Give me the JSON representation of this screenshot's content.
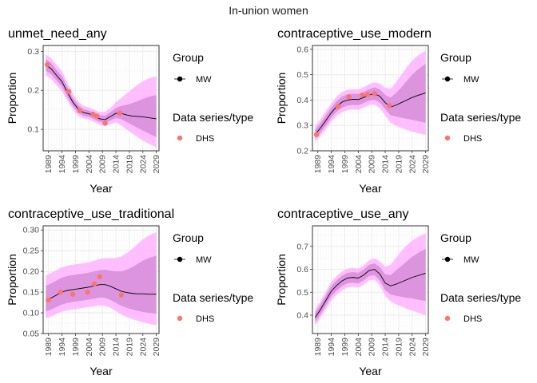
{
  "figure_title": "In-union women",
  "colors": {
    "outer_band": "#FFB3FF",
    "inner_band": "#D98FDB",
    "line": "#000000",
    "points": "#F8766D",
    "grid_major": "#EBEBEB",
    "grid_minor": "#F5F5F5",
    "axis_text": "#4D4D4D"
  },
  "chart_data": [
    {
      "type": "line",
      "title": "unmet_need_any",
      "xlabel": "Year",
      "ylabel": "Proportion",
      "xlim": [
        1987,
        2030
      ],
      "ylim": [
        0.045,
        0.315
      ],
      "x_ticks": [
        "1989",
        "1994",
        "1999",
        "2004",
        "2009",
        "2014",
        "2019",
        "2024",
        "2029"
      ],
      "y_ticks": [
        0.1,
        0.2,
        0.3
      ],
      "y_tick_labels": [
        "0.1",
        "0.2",
        "0.3"
      ],
      "legend": {
        "group_title": "Group",
        "group_label": "MW",
        "series_title": "Data series/type",
        "series_label": "DHS",
        "position": "right"
      },
      "series": [
        {
          "name": "MW",
          "kind": "median",
          "x": [
            1988,
            1990,
            1992,
            1994,
            1996,
            1998,
            2000,
            2002,
            2004,
            2006,
            2008,
            2010,
            2012,
            2014,
            2016,
            2018,
            2020,
            2022,
            2024,
            2026,
            2029
          ],
          "y": [
            0.265,
            0.255,
            0.238,
            0.222,
            0.195,
            0.17,
            0.152,
            0.143,
            0.14,
            0.134,
            0.127,
            0.125,
            0.133,
            0.141,
            0.141,
            0.137,
            0.134,
            0.133,
            0.132,
            0.13,
            0.127
          ]
        },
        {
          "name": "MW",
          "kind": "inner_band",
          "x": [
            1988,
            1990,
            1992,
            1994,
            1996,
            1998,
            2000,
            2002,
            2004,
            2006,
            2008,
            2010,
            2012,
            2014,
            2016,
            2018,
            2020,
            2022,
            2024,
            2026,
            2029
          ],
          "lower": [
            0.25,
            0.241,
            0.225,
            0.209,
            0.183,
            0.16,
            0.143,
            0.135,
            0.132,
            0.126,
            0.119,
            0.116,
            0.123,
            0.129,
            0.126,
            0.119,
            0.111,
            0.104,
            0.097,
            0.09,
            0.08
          ],
          "upper": [
            0.28,
            0.27,
            0.252,
            0.236,
            0.208,
            0.181,
            0.162,
            0.152,
            0.148,
            0.142,
            0.136,
            0.135,
            0.144,
            0.155,
            0.16,
            0.163,
            0.167,
            0.172,
            0.178,
            0.183,
            0.188
          ]
        },
        {
          "name": "MW",
          "kind": "outer_band",
          "x": [
            1988,
            1990,
            1992,
            1994,
            1996,
            1998,
            2000,
            2002,
            2004,
            2006,
            2008,
            2010,
            2012,
            2014,
            2016,
            2018,
            2020,
            2022,
            2024,
            2026,
            2029
          ],
          "lower": [
            0.238,
            0.229,
            0.213,
            0.197,
            0.173,
            0.151,
            0.135,
            0.128,
            0.125,
            0.119,
            0.112,
            0.108,
            0.114,
            0.118,
            0.11,
            0.1,
            0.09,
            0.08,
            0.071,
            0.064,
            0.054
          ],
          "upper": [
            0.292,
            0.282,
            0.265,
            0.249,
            0.22,
            0.192,
            0.171,
            0.16,
            0.156,
            0.15,
            0.144,
            0.145,
            0.155,
            0.17,
            0.18,
            0.192,
            0.203,
            0.214,
            0.223,
            0.23,
            0.236
          ]
        },
        {
          "name": "DHS",
          "kind": "points",
          "x": [
            1988.5,
            1996.5,
            2000.5,
            2005.5,
            2007,
            2010,
            2015.5
          ],
          "y": [
            0.266,
            0.197,
            0.148,
            0.139,
            0.134,
            0.116,
            0.142
          ]
        }
      ]
    },
    {
      "type": "line",
      "title": "contraceptive_use_modern",
      "xlabel": "Year",
      "ylabel": "Proportion",
      "xlim": [
        1987,
        2030
      ],
      "ylim": [
        0.2,
        0.615
      ],
      "x_ticks": [
        "1989",
        "1994",
        "1999",
        "2004",
        "2009",
        "2014",
        "2019",
        "2024",
        "2029"
      ],
      "y_ticks": [
        0.2,
        0.3,
        0.4,
        0.5,
        0.6
      ],
      "y_tick_labels": [
        "0.2",
        "0.3",
        "0.4",
        "0.5",
        "0.6"
      ],
      "legend": {
        "group_title": "Group",
        "group_label": "MW",
        "series_title": "Data series/type",
        "series_label": "DHS",
        "position": "right"
      },
      "series": [
        {
          "name": "MW",
          "kind": "median",
          "x": [
            1988,
            1990,
            1992,
            1994,
            1996,
            1998,
            2000,
            2002,
            2004,
            2006,
            2008,
            2010,
            2012,
            2014,
            2016,
            2018,
            2020,
            2022,
            2024,
            2026,
            2029
          ],
          "y": [
            0.265,
            0.29,
            0.32,
            0.35,
            0.375,
            0.392,
            0.4,
            0.403,
            0.402,
            0.41,
            0.42,
            0.425,
            0.415,
            0.39,
            0.372,
            0.38,
            0.39,
            0.4,
            0.41,
            0.418,
            0.428
          ]
        },
        {
          "name": "MW",
          "kind": "inner_band",
          "x": [
            1988,
            1990,
            1992,
            1994,
            1996,
            1998,
            2000,
            2002,
            2004,
            2006,
            2008,
            2010,
            2012,
            2014,
            2016,
            2018,
            2020,
            2022,
            2024,
            2026,
            2029
          ],
          "lower": [
            0.248,
            0.272,
            0.3,
            0.33,
            0.354,
            0.37,
            0.378,
            0.381,
            0.38,
            0.388,
            0.398,
            0.401,
            0.39,
            0.364,
            0.34,
            0.335,
            0.33,
            0.326,
            0.322,
            0.318,
            0.31
          ],
          "upper": [
            0.282,
            0.308,
            0.34,
            0.37,
            0.396,
            0.414,
            0.422,
            0.425,
            0.424,
            0.432,
            0.443,
            0.45,
            0.442,
            0.42,
            0.41,
            0.428,
            0.45,
            0.475,
            0.5,
            0.52,
            0.543
          ]
        },
        {
          "name": "MW",
          "kind": "outer_band",
          "x": [
            1988,
            1990,
            1992,
            1994,
            1996,
            1998,
            2000,
            2002,
            2004,
            2006,
            2008,
            2010,
            2012,
            2014,
            2016,
            2018,
            2020,
            2022,
            2024,
            2026,
            2029
          ],
          "lower": [
            0.235,
            0.258,
            0.285,
            0.315,
            0.338,
            0.352,
            0.36,
            0.363,
            0.362,
            0.37,
            0.38,
            0.382,
            0.368,
            0.34,
            0.31,
            0.3,
            0.29,
            0.282,
            0.276,
            0.27,
            0.262
          ],
          "upper": [
            0.298,
            0.324,
            0.357,
            0.387,
            0.414,
            0.432,
            0.44,
            0.443,
            0.442,
            0.45,
            0.462,
            0.47,
            0.465,
            0.448,
            0.445,
            0.47,
            0.5,
            0.53,
            0.555,
            0.575,
            0.595
          ]
        },
        {
          "name": "DHS",
          "kind": "points",
          "x": [
            1988.5,
            1996.5,
            2000.5,
            2005.5,
            2007.5,
            2010,
            2015.5
          ],
          "y": [
            0.264,
            0.375,
            0.413,
            0.42,
            0.422,
            0.425,
            0.378
          ]
        }
      ]
    },
    {
      "type": "line",
      "title": "contraceptive_use_traditional",
      "xlabel": "Year",
      "ylabel": "Proportion",
      "xlim": [
        1987,
        2030
      ],
      "ylim": [
        0.05,
        0.31
      ],
      "x_ticks": [
        "1989",
        "1994",
        "1999",
        "2004",
        "2009",
        "2014",
        "2019",
        "2024",
        "2029"
      ],
      "y_ticks": [
        0.05,
        0.1,
        0.15,
        0.2,
        0.25,
        0.3
      ],
      "y_tick_labels": [
        "0.05",
        "0.10",
        "0.15",
        "0.20",
        "0.25",
        "0.30"
      ],
      "legend": {
        "group_title": "Group",
        "group_label": "MW",
        "series_title": "Data series/type",
        "series_label": "DHS",
        "position": "right"
      },
      "series": [
        {
          "name": "MW",
          "kind": "median",
          "x": [
            1988,
            1990,
            1992,
            1994,
            1996,
            1998,
            2000,
            2002,
            2004,
            2006,
            2008,
            2010,
            2012,
            2014,
            2016,
            2018,
            2020,
            2022,
            2024,
            2026,
            2029
          ],
          "y": [
            0.13,
            0.136,
            0.143,
            0.15,
            0.154,
            0.156,
            0.158,
            0.16,
            0.162,
            0.165,
            0.168,
            0.168,
            0.164,
            0.158,
            0.152,
            0.149,
            0.147,
            0.146,
            0.146,
            0.145,
            0.145
          ]
        },
        {
          "name": "MW",
          "kind": "inner_band",
          "x": [
            1988,
            1990,
            1992,
            1994,
            1996,
            1998,
            2000,
            2002,
            2004,
            2006,
            2008,
            2010,
            2012,
            2014,
            2016,
            2018,
            2020,
            2022,
            2024,
            2026,
            2029
          ],
          "lower": [
            0.103,
            0.108,
            0.114,
            0.12,
            0.124,
            0.126,
            0.128,
            0.13,
            0.132,
            0.134,
            0.137,
            0.136,
            0.131,
            0.124,
            0.117,
            0.112,
            0.108,
            0.105,
            0.102,
            0.1,
            0.098
          ],
          "upper": [
            0.165,
            0.171,
            0.178,
            0.185,
            0.189,
            0.191,
            0.193,
            0.195,
            0.197,
            0.2,
            0.203,
            0.204,
            0.202,
            0.2,
            0.2,
            0.204,
            0.21,
            0.218,
            0.226,
            0.232,
            0.238
          ]
        },
        {
          "name": "MW",
          "kind": "outer_band",
          "x": [
            1988,
            1990,
            1992,
            1994,
            1996,
            1998,
            2000,
            2002,
            2004,
            2006,
            2008,
            2010,
            2012,
            2014,
            2016,
            2018,
            2020,
            2022,
            2024,
            2026,
            2029
          ],
          "lower": [
            0.087,
            0.091,
            0.097,
            0.103,
            0.106,
            0.108,
            0.11,
            0.112,
            0.114,
            0.116,
            0.118,
            0.117,
            0.112,
            0.104,
            0.096,
            0.09,
            0.085,
            0.081,
            0.077,
            0.074,
            0.07
          ],
          "upper": [
            0.19,
            0.196,
            0.203,
            0.21,
            0.214,
            0.216,
            0.218,
            0.22,
            0.222,
            0.226,
            0.23,
            0.232,
            0.232,
            0.232,
            0.236,
            0.244,
            0.254,
            0.266,
            0.277,
            0.286,
            0.295
          ]
        },
        {
          "name": "DHS",
          "kind": "points",
          "x": [
            1989,
            1993.5,
            1998,
            2003.5,
            2006,
            2008,
            2016
          ],
          "y": [
            0.131,
            0.15,
            0.145,
            0.15,
            0.17,
            0.187,
            0.143
          ]
        }
      ]
    },
    {
      "type": "line",
      "title": "contraceptive_use_any",
      "xlabel": "Year",
      "ylabel": "Proportion",
      "xlim": [
        1987,
        2030
      ],
      "ylim": [
        0.32,
        0.79
      ],
      "x_ticks": [
        "1989",
        "1994",
        "1999",
        "2004",
        "2009",
        "2014",
        "2019",
        "2024",
        "2029"
      ],
      "y_ticks": [
        0.4,
        0.5,
        0.6,
        0.7
      ],
      "y_tick_labels": [
        "0.4",
        "0.5",
        "0.6",
        "0.7"
      ],
      "legend": {
        "group_title": "Group",
        "group_label": "MW",
        "series_title": "Data series/type",
        "series_label": "DHS",
        "position": "right"
      },
      "series": [
        {
          "name": "MW",
          "kind": "median",
          "x": [
            1988,
            1990,
            1992,
            1994,
            1996,
            1998,
            2000,
            2002,
            2004,
            2006,
            2008,
            2010,
            2012,
            2014,
            2016,
            2018,
            2020,
            2022,
            2024,
            2026,
            2029
          ],
          "y": [
            0.39,
            0.425,
            0.465,
            0.505,
            0.53,
            0.55,
            0.562,
            0.565,
            0.562,
            0.575,
            0.595,
            0.6,
            0.58,
            0.54,
            0.528,
            0.535,
            0.545,
            0.555,
            0.565,
            0.572,
            0.583
          ]
        },
        {
          "name": "MW",
          "kind": "inner_band",
          "x": [
            1988,
            1990,
            1992,
            1994,
            1996,
            1998,
            2000,
            2002,
            2004,
            2006,
            2008,
            2010,
            2012,
            2014,
            2016,
            2018,
            2020,
            2022,
            2024,
            2026,
            2029
          ],
          "lower": [
            0.37,
            0.404,
            0.443,
            0.482,
            0.507,
            0.527,
            0.539,
            0.542,
            0.539,
            0.551,
            0.571,
            0.575,
            0.552,
            0.509,
            0.49,
            0.485,
            0.48,
            0.476,
            0.473,
            0.468,
            0.462
          ],
          "upper": [
            0.41,
            0.446,
            0.487,
            0.528,
            0.553,
            0.573,
            0.585,
            0.588,
            0.585,
            0.599,
            0.62,
            0.626,
            0.61,
            0.578,
            0.575,
            0.595,
            0.615,
            0.635,
            0.655,
            0.67,
            0.69
          ]
        },
        {
          "name": "MW",
          "kind": "outer_band",
          "x": [
            1988,
            1990,
            1992,
            1994,
            1996,
            1998,
            2000,
            2002,
            2004,
            2006,
            2008,
            2010,
            2012,
            2014,
            2016,
            2018,
            2020,
            2022,
            2024,
            2026,
            2029
          ],
          "lower": [
            0.355,
            0.388,
            0.426,
            0.464,
            0.489,
            0.509,
            0.521,
            0.524,
            0.521,
            0.533,
            0.552,
            0.555,
            0.53,
            0.485,
            0.46,
            0.448,
            0.438,
            0.428,
            0.42,
            0.412,
            0.4
          ],
          "upper": [
            0.425,
            0.462,
            0.504,
            0.546,
            0.571,
            0.591,
            0.603,
            0.606,
            0.603,
            0.617,
            0.64,
            0.648,
            0.636,
            0.612,
            0.62,
            0.65,
            0.68,
            0.705,
            0.725,
            0.74,
            0.758
          ]
        }
      ]
    }
  ]
}
